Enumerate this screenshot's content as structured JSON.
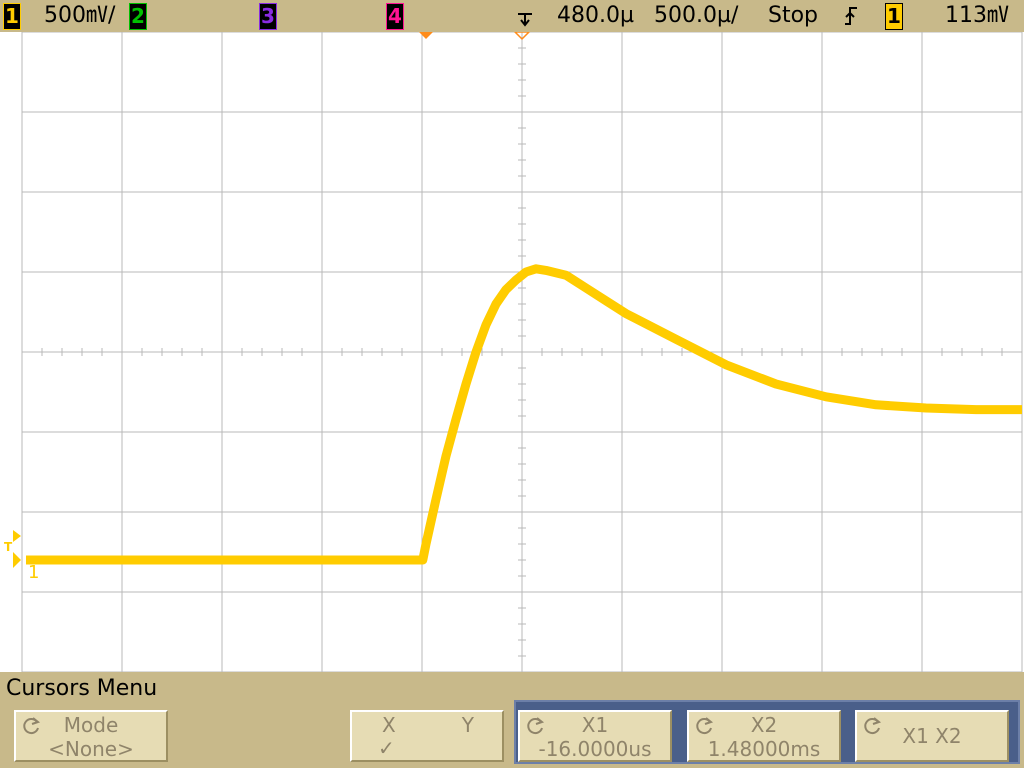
{
  "status_bar": {
    "ch1_label": "1",
    "ch1_scale": "500㎷/",
    "ch2_label": "2",
    "ch3_label": "3",
    "ch4_label": "4",
    "time_position": "480.0µ",
    "time_scale": "500.0µ/",
    "run_state": "Stop",
    "trigger_slope_icon": "rising-edge-icon",
    "trigger_source": "1",
    "trigger_level": "113㎷"
  },
  "colors": {
    "ch1": "#ffcc00",
    "ch2": "#00c000",
    "ch3": "#8a2be2",
    "ch4": "#ff1493",
    "trigger_marker": "#ff8c1a",
    "grid": "#b8b8b8",
    "menu_bg": "#c8b98a",
    "softkey_bg": "#e6dcb4",
    "softkey_active_group": "#4a5f8a"
  },
  "screen_markers": {
    "trigger_ref": "T",
    "ch1_ground": "1"
  },
  "waveform": {
    "type": "line",
    "xlabel": "",
    "ylabel": "",
    "x_units": "us",
    "y_units": "mV",
    "xlim": [
      -2020,
      2980
    ],
    "ylim": [
      -2100,
      1900
    ],
    "x_divisions": 10,
    "y_divisions": 8,
    "series": [
      {
        "channel": "1",
        "x": [
          -2000,
          -1500,
          -1000,
          -500,
          -16,
          0,
          50,
          100,
          150,
          200,
          250,
          300,
          350,
          400,
          450,
          500,
          550,
          600,
          700,
          800,
          900,
          1000,
          1250,
          1500,
          1750,
          2000,
          2250,
          2500,
          2750,
          2980
        ],
        "y": [
          -1400,
          -1400,
          -1400,
          -1400,
          -1400,
          -1300,
          -1020,
          -750,
          -520,
          -300,
          -100,
          70,
          200,
          290,
          350,
          400,
          420,
          410,
          380,
          300,
          220,
          140,
          -20,
          -180,
          -300,
          -380,
          -430,
          -450,
          -460,
          -460
        ]
      }
    ]
  },
  "menu": {
    "title": "Cursors Menu",
    "softkeys": [
      {
        "line1": "Mode",
        "line2": "<None>"
      },
      {
        "line1_left": "X",
        "line1_right": "Y",
        "line2": "✓"
      },
      {
        "line1": "X1",
        "line2": "-16.0000us"
      },
      {
        "line1": "X2",
        "line2": "1.48000ms"
      },
      {
        "line1": "X1 X2",
        "line2": ""
      }
    ]
  }
}
